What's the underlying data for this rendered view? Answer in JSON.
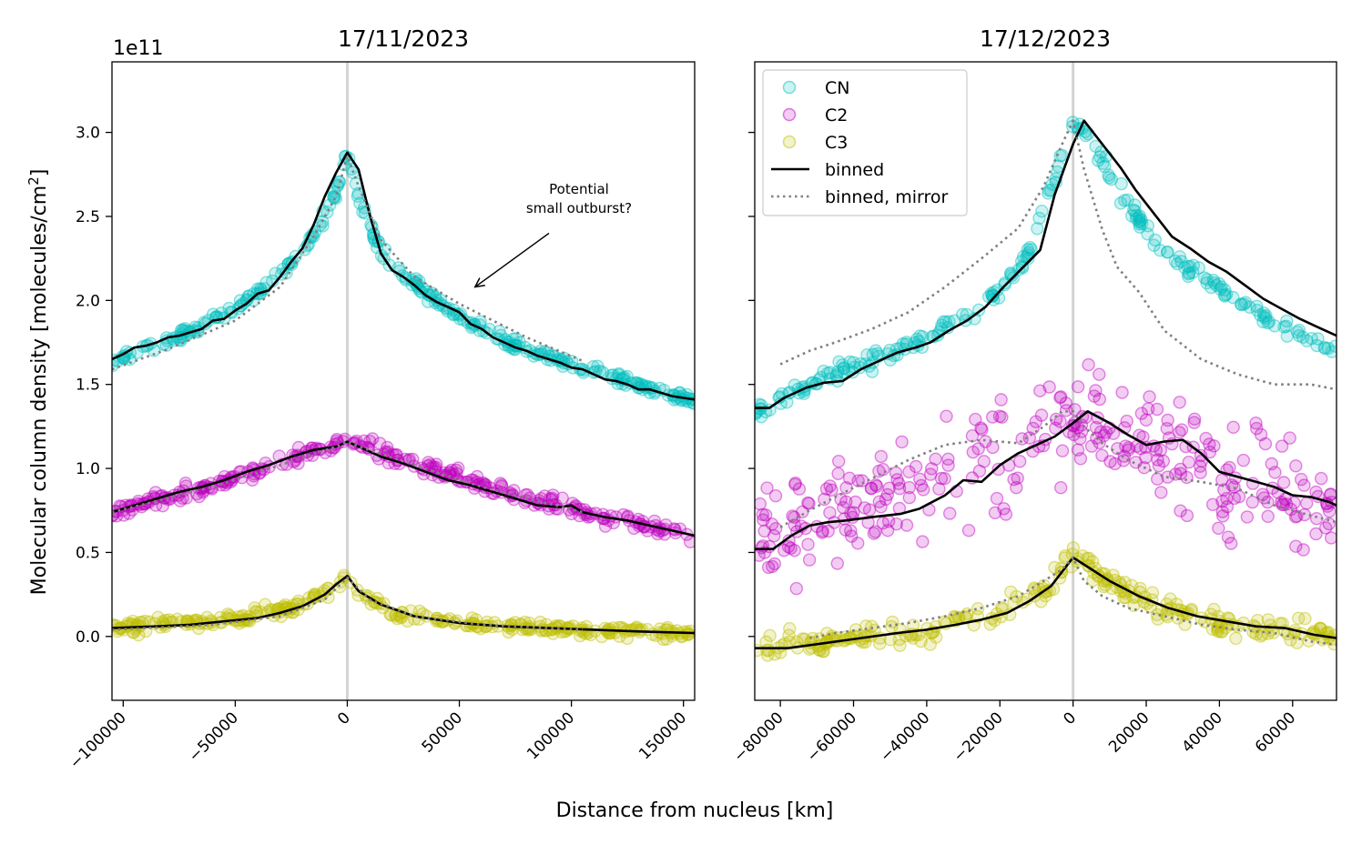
{
  "figure": {
    "ylabel": "Molecular column density [molecules/cm$^2$]",
    "ylabel_main": "Molecular column density [molecules/cm",
    "ylabel_sup": "2",
    "ylabel_end": "]",
    "xlabel": "Distance from nucleus [km]",
    "y_offset_label": "1e11"
  },
  "legend": {
    "placement": "upper left",
    "entries": [
      {
        "label": "CN",
        "kind": "marker",
        "color": "#00bfbf"
      },
      {
        "label": "C2",
        "kind": "marker",
        "color": "#bf00bf"
      },
      {
        "label": "C3",
        "kind": "marker",
        "color": "#bfbf00"
      },
      {
        "label": "binned",
        "kind": "line",
        "color": "#000000"
      },
      {
        "label": "binned, mirror",
        "kind": "dotted",
        "color": "#808080"
      }
    ]
  },
  "colors": {
    "CN": "#00bfbf",
    "C2": "#bf00bf",
    "C3": "#bfbf00",
    "binned": "#000000",
    "mirror": "#808080",
    "nucleus_line": "#d3d3d3"
  },
  "chart_data": [
    {
      "type": "scatter",
      "title": "17/11/2023",
      "xlabel": "Distance from nucleus [km]",
      "ylabel": "Molecular column density [molecules/cm$^2$]",
      "y_scale": "1e11",
      "xlim": [
        -105000,
        155000
      ],
      "ylim": [
        -0.38,
        3.42
      ],
      "xticks": [
        -100000,
        -50000,
        0,
        50000,
        100000,
        150000
      ],
      "xtick_labels": [
        "−100000",
        "−50000",
        "0",
        "50000",
        "100000",
        "150000"
      ],
      "yticks": [
        0.0,
        0.5,
        1.0,
        1.5,
        2.0,
        2.5,
        3.0
      ],
      "ytick_labels": [
        "0.0",
        "0.5",
        "1.0",
        "1.5",
        "2.0",
        "2.5",
        "3.0"
      ],
      "vline_x": 0,
      "annotation": {
        "text_lines": [
          "Potential",
          "small outburst?"
        ],
        "text_x": 104000,
        "text_y": 2.54,
        "arrow_from_x": 90000,
        "arrow_from_y": 2.4,
        "arrow_to_x": 57000,
        "arrow_to_y": 2.08
      },
      "series": [
        {
          "name": "CN",
          "kind": "points",
          "color": "#00bfbf",
          "n_points": 300,
          "noise": 0.03,
          "profile_x": [
            -105000,
            -80000,
            -50000,
            -30000,
            -15000,
            -5000,
            0,
            5000,
            15000,
            30000,
            50000,
            80000,
            110000,
            155000
          ],
          "profile_y": [
            1.64,
            1.76,
            1.95,
            2.15,
            2.38,
            2.64,
            2.9,
            2.62,
            2.28,
            2.1,
            1.9,
            1.7,
            1.58,
            1.4
          ]
        },
        {
          "name": "C2",
          "kind": "points",
          "color": "#bf00bf",
          "n_points": 300,
          "noise": 0.04,
          "profile_x": [
            -105000,
            -60000,
            -30000,
            -10000,
            0,
            10000,
            30000,
            60000,
            100000,
            155000
          ],
          "profile_y": [
            0.74,
            0.9,
            1.03,
            1.12,
            1.16,
            1.12,
            1.03,
            0.9,
            0.76,
            0.6
          ]
        },
        {
          "name": "C3",
          "kind": "points",
          "color": "#bfbf00",
          "n_points": 300,
          "noise": 0.03,
          "profile_x": [
            -105000,
            -50000,
            -20000,
            -5000,
            0,
            5000,
            20000,
            50000,
            100000,
            155000
          ],
          "profile_y": [
            0.05,
            0.1,
            0.19,
            0.3,
            0.36,
            0.26,
            0.14,
            0.08,
            0.04,
            0.02
          ]
        },
        {
          "name": "binned",
          "kind": "line",
          "color": "#000000",
          "style": "solid",
          "width": 2,
          "x": [
            -105000,
            -100000,
            -95000,
            -90000,
            -85000,
            -80000,
            -75000,
            -70000,
            -65000,
            -60000,
            -55000,
            -50000,
            -45000,
            -40000,
            -35000,
            -30000,
            -25000,
            -20000,
            -15000,
            -10000,
            -5000,
            0,
            5000,
            10000,
            15000,
            20000,
            25000,
            30000,
            35000,
            40000,
            45000,
            50000,
            55000,
            60000,
            65000,
            70000,
            75000,
            80000,
            85000,
            90000,
            95000,
            100000,
            105000,
            110000,
            115000,
            120000,
            125000,
            130000,
            135000,
            140000,
            145000,
            150000,
            155000
          ],
          "y": [
            1.65,
            1.68,
            1.72,
            1.73,
            1.75,
            1.78,
            1.79,
            1.81,
            1.83,
            1.88,
            1.89,
            1.94,
            1.98,
            2.04,
            2.06,
            2.14,
            2.23,
            2.31,
            2.45,
            2.62,
            2.76,
            2.88,
            2.78,
            2.51,
            2.28,
            2.18,
            2.14,
            2.09,
            2.03,
            1.99,
            1.96,
            1.93,
            1.86,
            1.83,
            1.78,
            1.75,
            1.72,
            1.7,
            1.67,
            1.65,
            1.63,
            1.6,
            1.59,
            1.56,
            1.53,
            1.52,
            1.5,
            1.47,
            1.47,
            1.45,
            1.43,
            1.42,
            1.41
          ]
        },
        {
          "name": "binned",
          "kind": "line",
          "color": "#000000",
          "style": "solid",
          "width": 2,
          "x": [
            -105000,
            -95000,
            -85000,
            -75000,
            -65000,
            -55000,
            -45000,
            -35000,
            -25000,
            -15000,
            -5000,
            0,
            5000,
            15000,
            25000,
            35000,
            45000,
            55000,
            65000,
            75000,
            85000,
            95000,
            100000,
            105000,
            115000,
            125000,
            135000,
            145000,
            155000
          ],
          "y": [
            0.74,
            0.78,
            0.82,
            0.86,
            0.89,
            0.93,
            0.98,
            1.02,
            1.07,
            1.11,
            1.13,
            1.16,
            1.13,
            1.07,
            1.03,
            0.98,
            0.93,
            0.9,
            0.86,
            0.82,
            0.78,
            0.77,
            0.78,
            0.74,
            0.71,
            0.69,
            0.66,
            0.63,
            0.6
          ]
        },
        {
          "name": "binned",
          "kind": "line",
          "color": "#000000",
          "style": "solid",
          "width": 2,
          "x": [
            -105000,
            -85000,
            -70000,
            -55000,
            -40000,
            -30000,
            -20000,
            -10000,
            -5000,
            0,
            5000,
            15000,
            30000,
            50000,
            70000,
            90000,
            110000,
            130000,
            155000
          ],
          "y": [
            0.05,
            0.06,
            0.07,
            0.09,
            0.11,
            0.14,
            0.18,
            0.25,
            0.31,
            0.36,
            0.27,
            0.19,
            0.12,
            0.08,
            0.06,
            0.05,
            0.04,
            0.03,
            0.02
          ]
        },
        {
          "name": "binned, mirror",
          "kind": "line",
          "color": "#808080",
          "style": "dotted",
          "width": 2,
          "x": [
            -105000,
            -80000,
            -50000,
            -30000,
            -15000,
            -5000,
            0,
            5000,
            15000,
            30000,
            50000,
            80000,
            105000
          ],
          "y": [
            1.59,
            1.71,
            1.88,
            2.08,
            2.38,
            2.62,
            2.86,
            2.68,
            2.36,
            2.14,
            1.98,
            1.78,
            1.64
          ]
        },
        {
          "name": "binned, mirror",
          "kind": "line",
          "color": "#808080",
          "style": "dotted",
          "width": 2,
          "x": [
            -105000,
            -60000,
            -30000,
            -5000,
            0,
            5000,
            30000,
            60000,
            105000
          ],
          "y": [
            0.74,
            0.89,
            1.02,
            1.13,
            1.16,
            1.13,
            1.02,
            0.89,
            0.74
          ]
        },
        {
          "name": "binned, mirror",
          "kind": "line",
          "color": "#808080",
          "style": "dotted",
          "width": 2,
          "x": [
            -105000,
            -60000,
            -30000,
            -10000,
            0,
            10000,
            30000,
            60000,
            105000
          ],
          "y": [
            0.04,
            0.07,
            0.12,
            0.22,
            0.35,
            0.22,
            0.12,
            0.07,
            0.04
          ]
        }
      ]
    },
    {
      "type": "scatter",
      "title": "17/12/2023",
      "xlabel": "Distance from nucleus [km]",
      "xlim": [
        -87000,
        72000
      ],
      "ylim": [
        -0.38,
        3.42
      ],
      "xticks": [
        -80000,
        -60000,
        -40000,
        -20000,
        0,
        20000,
        40000,
        60000
      ],
      "xtick_labels": [
        "−80000",
        "−60000",
        "−40000",
        "−20000",
        "0",
        "20000",
        "40000",
        "60000"
      ],
      "yticks": [
        0.0,
        0.5,
        1.0,
        1.5,
        2.0,
        2.5,
        3.0
      ],
      "ytick_labels_shown": false,
      "vline_x": 0,
      "series": [
        {
          "name": "CN",
          "kind": "points",
          "color": "#00bfbf",
          "n_points": 240,
          "noise": 0.04,
          "profile_x": [
            -87000,
            -70000,
            -55000,
            -40000,
            -25000,
            -12000,
            -5000,
            0,
            4000,
            10000,
            22000,
            35000,
            50000,
            72000
          ],
          "profile_y": [
            1.32,
            1.52,
            1.66,
            1.76,
            1.95,
            2.28,
            2.72,
            3.05,
            3.02,
            2.75,
            2.35,
            2.15,
            1.92,
            1.7
          ]
        },
        {
          "name": "C2",
          "kind": "points",
          "color": "#bf00bf",
          "n_points": 320,
          "noise": 0.26,
          "profile_x": [
            -87000,
            -60000,
            -40000,
            -20000,
            0,
            20000,
            40000,
            72000
          ],
          "profile_y": [
            0.55,
            0.72,
            0.92,
            1.1,
            1.3,
            1.15,
            0.95,
            0.78
          ]
        },
        {
          "name": "C3",
          "kind": "points",
          "color": "#bfbf00",
          "n_points": 260,
          "noise": 0.06,
          "profile_x": [
            -87000,
            -60000,
            -40000,
            -20000,
            -8000,
            0,
            8000,
            20000,
            40000,
            72000
          ],
          "profile_y": [
            -0.08,
            0.0,
            0.05,
            0.14,
            0.28,
            0.48,
            0.36,
            0.2,
            0.08,
            -0.01
          ]
        },
        {
          "name": "binned",
          "kind": "line",
          "color": "#000000",
          "style": "solid",
          "width": 2,
          "x": [
            -87000,
            -83000,
            -79000,
            -73000,
            -68000,
            -63000,
            -58000,
            -53000,
            -48000,
            -43000,
            -39000,
            -34000,
            -29000,
            -24000,
            -19000,
            -14000,
            -9000,
            -5000,
            0,
            3000,
            8000,
            13000,
            17000,
            22000,
            27000,
            32000,
            37000,
            42000,
            47000,
            52000,
            57000,
            62000,
            67000,
            72000
          ],
          "y": [
            1.36,
            1.36,
            1.42,
            1.48,
            1.51,
            1.52,
            1.59,
            1.64,
            1.69,
            1.72,
            1.75,
            1.82,
            1.88,
            1.96,
            2.08,
            2.19,
            2.3,
            2.63,
            2.93,
            3.07,
            2.93,
            2.79,
            2.66,
            2.52,
            2.38,
            2.31,
            2.23,
            2.17,
            2.09,
            2.01,
            1.95,
            1.89,
            1.84,
            1.79
          ]
        },
        {
          "name": "binned",
          "kind": "line",
          "color": "#000000",
          "style": "solid",
          "width": 2,
          "x": [
            -87000,
            -82000,
            -77000,
            -72000,
            -67000,
            -62000,
            -55000,
            -47000,
            -42000,
            -35000,
            -30000,
            -25000,
            -20000,
            -15000,
            -10000,
            -5000,
            0,
            4000,
            10000,
            15000,
            20000,
            25000,
            30000,
            35000,
            40000,
            45000,
            50000,
            55000,
            60000,
            65000,
            70000,
            72000
          ],
          "y": [
            0.52,
            0.52,
            0.6,
            0.66,
            0.68,
            0.69,
            0.71,
            0.73,
            0.76,
            0.84,
            0.93,
            0.92,
            1.02,
            1.09,
            1.14,
            1.19,
            1.27,
            1.34,
            1.27,
            1.2,
            1.14,
            1.16,
            1.17,
            1.09,
            0.98,
            0.95,
            0.92,
            0.89,
            0.84,
            0.83,
            0.8,
            0.78
          ]
        },
        {
          "name": "binned",
          "kind": "line",
          "color": "#000000",
          "style": "solid",
          "width": 2,
          "x": [
            -87000,
            -78000,
            -68000,
            -58000,
            -48000,
            -40000,
            -32000,
            -25000,
            -18000,
            -12000,
            -6000,
            0,
            5000,
            10000,
            18000,
            26000,
            34000,
            42000,
            50000,
            58000,
            66000,
            72000
          ],
          "y": [
            -0.07,
            -0.07,
            -0.04,
            -0.01,
            0.02,
            0.04,
            0.07,
            0.1,
            0.14,
            0.21,
            0.3,
            0.47,
            0.4,
            0.33,
            0.24,
            0.17,
            0.12,
            0.09,
            0.06,
            0.05,
            0.01,
            -0.01
          ]
        },
        {
          "name": "binned, mirror",
          "kind": "line",
          "color": "#808080",
          "style": "dotted",
          "width": 2,
          "x": [
            -80000,
            -72000,
            -65000,
            -55000,
            -45000,
            -35000,
            -25000,
            -15000,
            -8000,
            -3000,
            0,
            3000,
            8000,
            12000,
            18000,
            25000,
            35000,
            45000,
            55000,
            65000,
            72000
          ],
          "y": [
            1.62,
            1.7,
            1.75,
            1.83,
            1.93,
            2.08,
            2.25,
            2.43,
            2.68,
            2.93,
            3.07,
            2.78,
            2.42,
            2.2,
            2.05,
            1.82,
            1.65,
            1.56,
            1.5,
            1.5,
            1.47
          ]
        },
        {
          "name": "binned, mirror",
          "kind": "line",
          "color": "#808080",
          "style": "dotted",
          "width": 2,
          "x": [
            -80000,
            -72000,
            -65000,
            -55000,
            -45000,
            -35000,
            -25000,
            -15000,
            -8000,
            -3000,
            0,
            3000,
            8000,
            15000,
            25000,
            35000,
            45000,
            55000,
            65000,
            72000
          ],
          "y": [
            0.65,
            0.75,
            0.83,
            0.94,
            1.05,
            1.14,
            1.17,
            1.15,
            1.25,
            1.34,
            1.34,
            1.25,
            1.15,
            1.05,
            0.95,
            0.92,
            0.88,
            0.78,
            0.72,
            0.68
          ]
        },
        {
          "name": "binned, mirror",
          "kind": "line",
          "color": "#808080",
          "style": "dotted",
          "width": 2,
          "x": [
            -72000,
            -65000,
            -55000,
            -45000,
            -35000,
            -25000,
            -15000,
            -8000,
            -3000,
            0,
            3000,
            8000,
            15000,
            25000,
            35000,
            45000,
            55000,
            65000,
            72000
          ],
          "y": [
            -0.01,
            0.02,
            0.05,
            0.08,
            0.12,
            0.17,
            0.24,
            0.33,
            0.4,
            0.47,
            0.33,
            0.24,
            0.17,
            0.12,
            0.07,
            0.04,
            0.02,
            -0.03,
            -0.05
          ]
        }
      ]
    }
  ]
}
